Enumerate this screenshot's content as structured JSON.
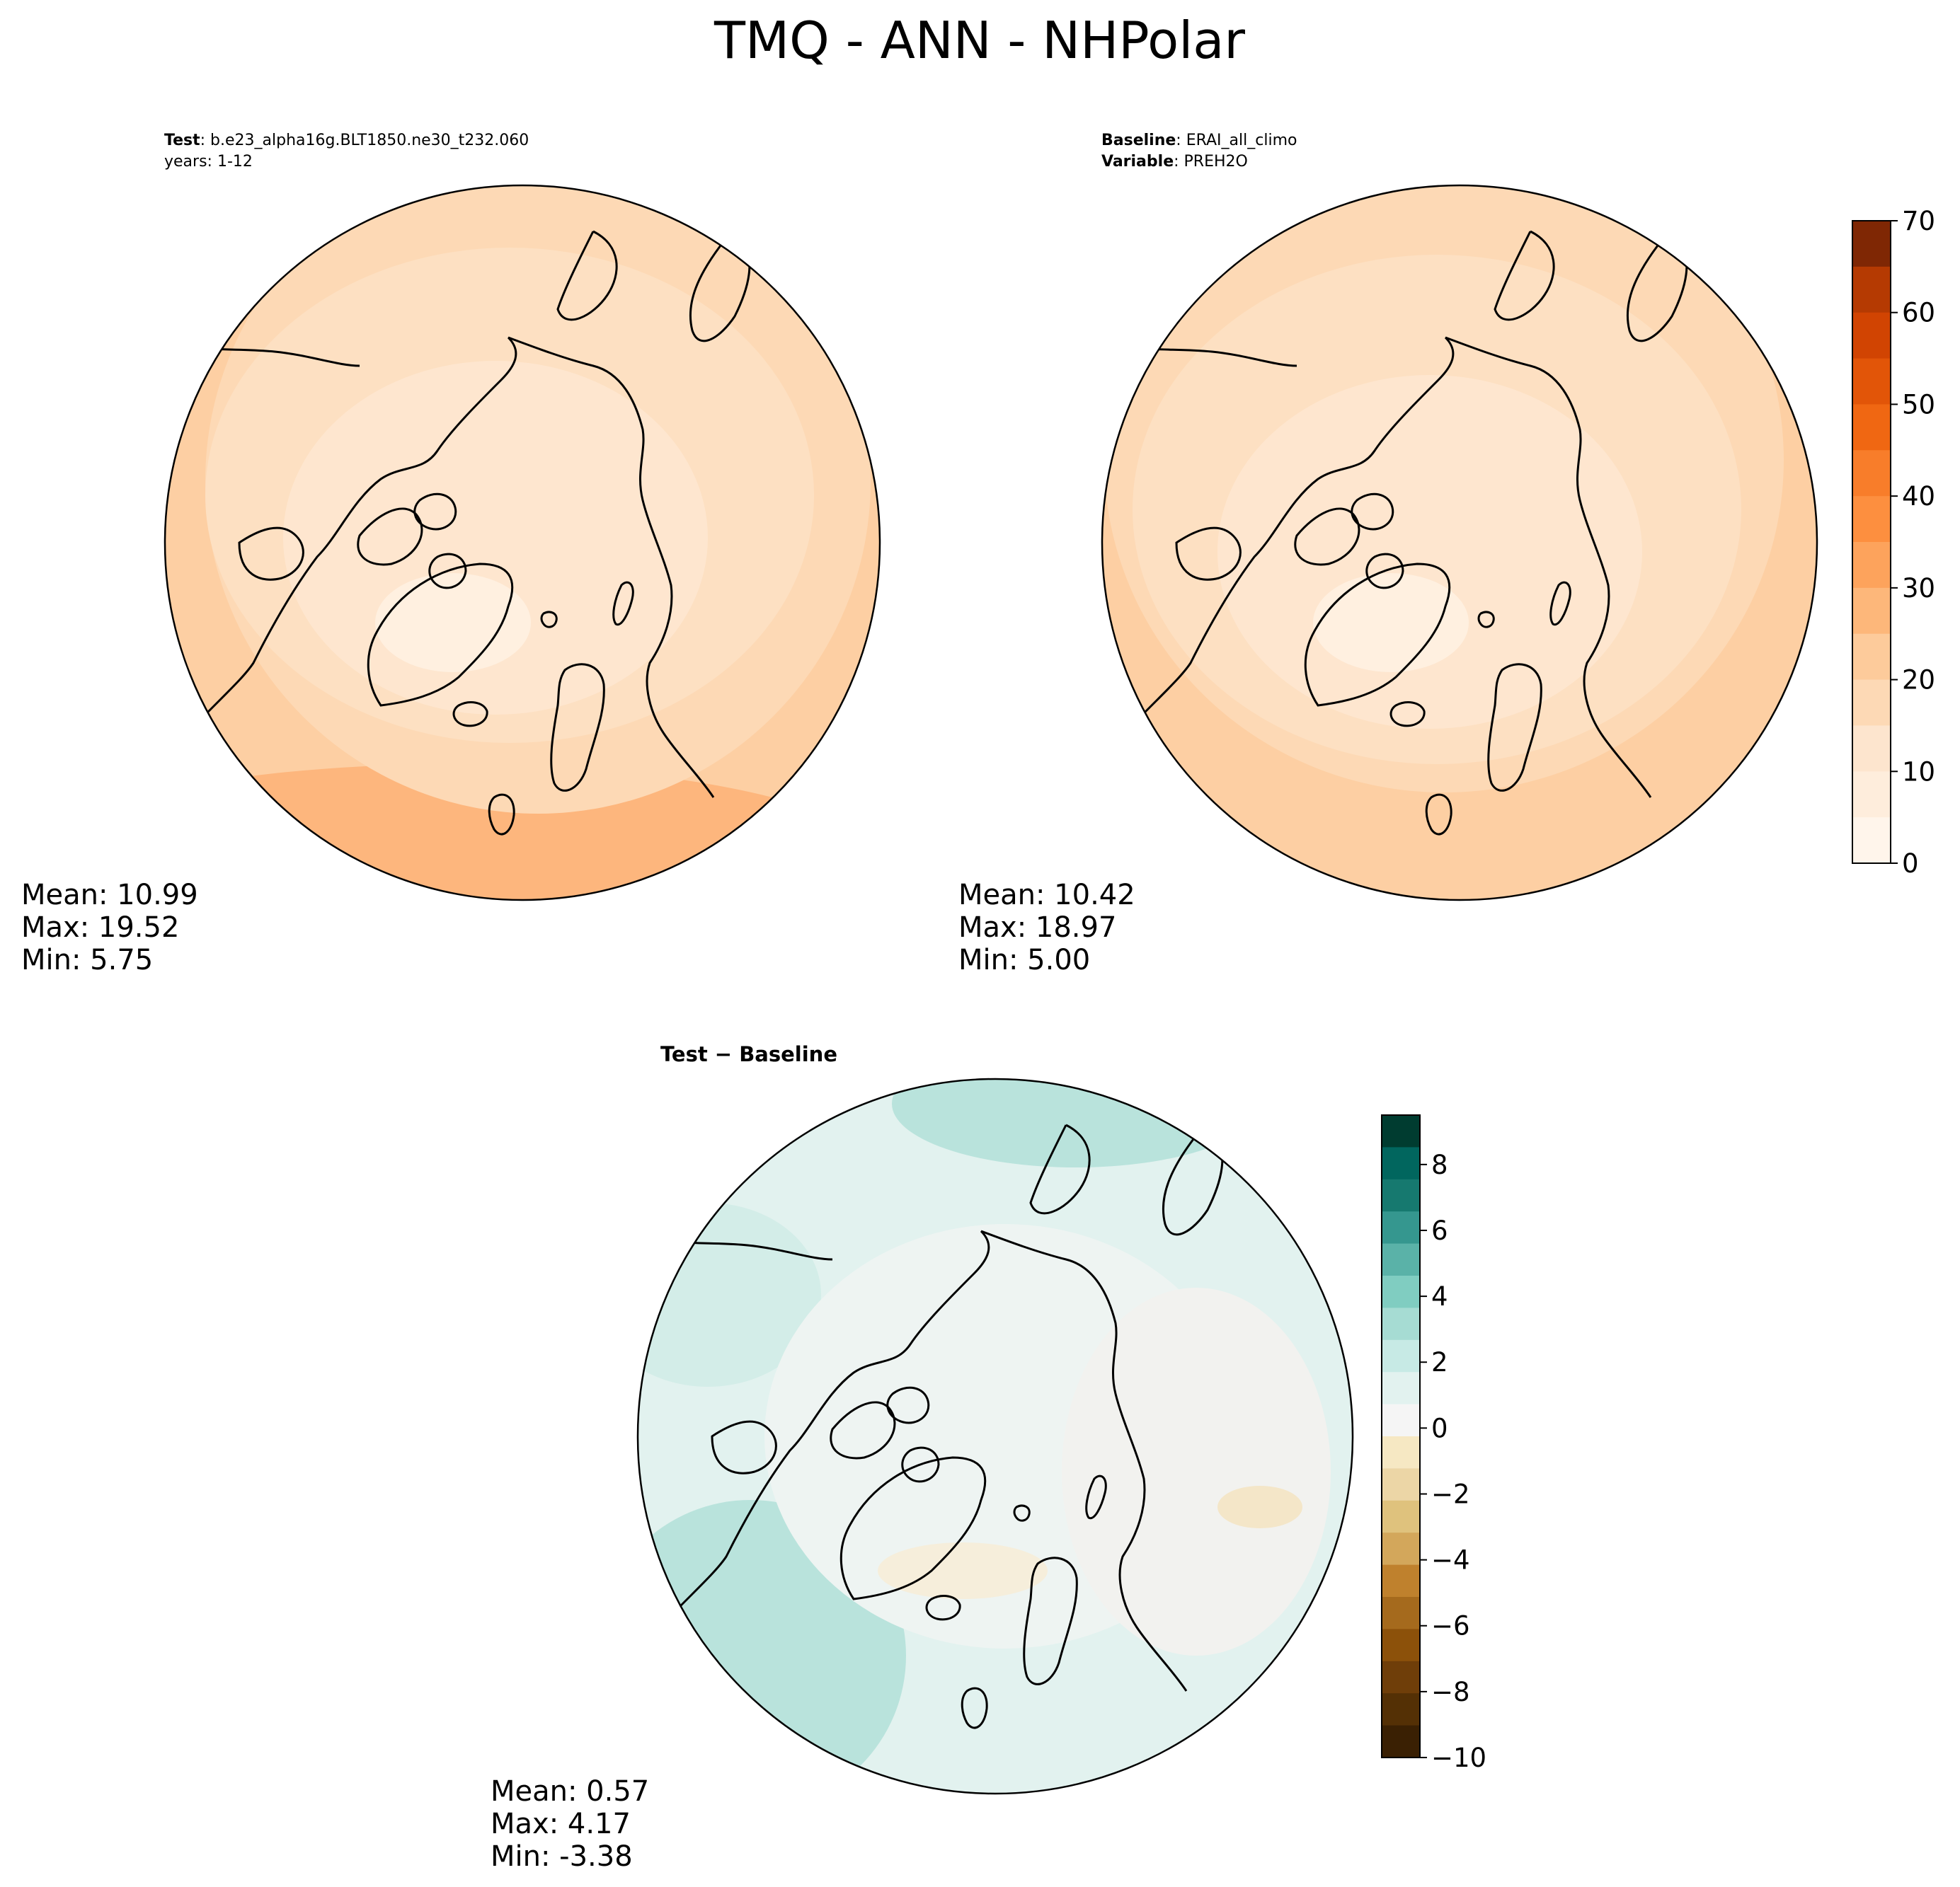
{
  "figure": {
    "title": "TMQ - ANN - NHPolar"
  },
  "panels": {
    "test": {
      "label_key": "Test",
      "label_value": "b.e23_alpha16g.BLT1850.ne30_t232.060",
      "line2": "years: 1-12",
      "stats": {
        "mean": "Mean: 10.99",
        "max": "Max: 19.52",
        "min": "Min:  5.75"
      }
    },
    "baseline": {
      "label_key": "Baseline",
      "label_value": "ERAI_all_climo",
      "line2_key": "Variable",
      "line2_value": "PREH2O",
      "stats": {
        "mean": "Mean: 10.42",
        "max": "Max: 18.97",
        "min": "Min:  5.00"
      }
    },
    "diff": {
      "title_a": "Test",
      "title_op": " − ",
      "title_b": "Baseline",
      "stats": {
        "mean": "Mean:  0.57",
        "max": "Max:  4.17",
        "min": "Min: -3.38"
      }
    }
  },
  "chart_data": [
    {
      "type": "heatmap",
      "name": "test",
      "projection": "north-polar-stereographic",
      "grid": false,
      "colormap": "Oranges",
      "colorbar": {
        "ticks": [
          "0",
          "10",
          "20",
          "30",
          "40",
          "50",
          "60",
          "70"
        ],
        "range": [
          0,
          70
        ],
        "levels": 14
      },
      "stats": {
        "mean": 10.99,
        "max": 19.52,
        "min": 5.75
      }
    },
    {
      "type": "heatmap",
      "name": "baseline",
      "projection": "north-polar-stereographic",
      "grid": false,
      "colormap": "Oranges",
      "colorbar": {
        "shared_with": "test"
      },
      "stats": {
        "mean": 10.42,
        "max": 18.97,
        "min": 5.0
      }
    },
    {
      "type": "heatmap",
      "name": "test-minus-baseline",
      "projection": "north-polar-stereographic",
      "grid": false,
      "colormap": "BrBG",
      "colorbar": {
        "ticks": [
          "8",
          "6",
          "4",
          "2",
          "0",
          "−2",
          "−4",
          "−6",
          "−8",
          "−10"
        ],
        "range": [
          -10,
          9.5
        ],
        "levels": 20
      },
      "stats": {
        "mean": 0.57,
        "max": 4.17,
        "min": -3.38
      }
    }
  ],
  "colors": {
    "oranges": [
      "#fff5eb",
      "#feeddc",
      "#fde5ce",
      "#fdd9b5",
      "#fdcb9b",
      "#fdb77a",
      "#fda35c",
      "#fd8f3f",
      "#f87d2a",
      "#f06712",
      "#e25508",
      "#d14402",
      "#b53a02",
      "#7f2704"
    ],
    "brbg": [
      "#003c30",
      "#01665e",
      "#16796f",
      "#35978f",
      "#5ab2a8",
      "#80cdc1",
      "#a6dcd3",
      "#c7eae5",
      "#e2f2ef",
      "#f5f5f5",
      "#f6e8c3",
      "#ecd6a6",
      "#dfc27d",
      "#d3a75b",
      "#bf812d",
      "#a56a1d",
      "#8c510a",
      "#6f3e09",
      "#543005",
      "#3a2003"
    ]
  }
}
